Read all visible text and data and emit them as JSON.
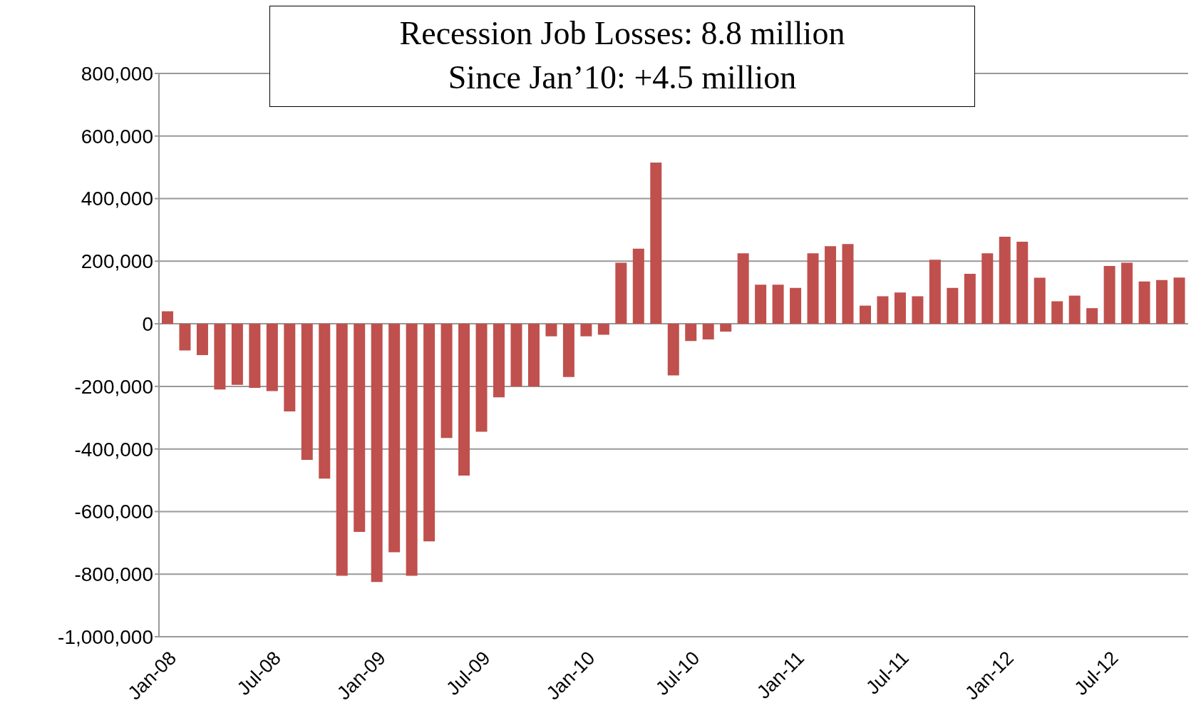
{
  "chart_data": {
    "type": "bar",
    "title": "Recession Job Losses: 8.8 million",
    "subtitle": "Since Jan’10: +4.5 million",
    "categories": [
      "Jan-08",
      null,
      null,
      null,
      null,
      null,
      "Jul-08",
      null,
      null,
      null,
      null,
      null,
      "Jan-09",
      null,
      null,
      null,
      null,
      null,
      "Jul-09",
      null,
      null,
      null,
      null,
      null,
      "Jan-10",
      null,
      null,
      null,
      null,
      null,
      "Jul-10",
      null,
      null,
      null,
      null,
      null,
      "Jan-11",
      null,
      null,
      null,
      null,
      null,
      "Jul-11",
      null,
      null,
      null,
      null,
      null,
      "Jan-12",
      null,
      null,
      null,
      null,
      null,
      "Jul-12",
      null,
      null,
      null,
      null
    ],
    "values": [
      40000,
      -85000,
      -100000,
      -210000,
      -195000,
      -205000,
      -215000,
      -280000,
      -435000,
      -495000,
      -805000,
      -665000,
      -825000,
      -730000,
      -805000,
      -695000,
      -365000,
      -485000,
      -345000,
      -235000,
      -200000,
      -200000,
      -40000,
      -170000,
      -40000,
      -35000,
      195000,
      240000,
      515000,
      -165000,
      -55000,
      -50000,
      -25000,
      225000,
      125000,
      125000,
      115000,
      225000,
      248000,
      255000,
      58000,
      88000,
      100000,
      88000,
      205000,
      115000,
      160000,
      225000,
      278000,
      262000,
      147000,
      72000,
      90000,
      50000,
      185000,
      195000,
      135000,
      140000,
      148000
    ],
    "color": "#c0504d",
    "ylim": [
      -1000000,
      800000
    ],
    "yticks": [
      {
        "value": -1000000,
        "label": "-1,000,000"
      },
      {
        "value": -800000,
        "label": "-800,000"
      },
      {
        "value": -600000,
        "label": "-600,000"
      },
      {
        "value": -400000,
        "label": "-400,000"
      },
      {
        "value": -200000,
        "label": "-200,000"
      },
      0,
      {
        "value": 200000,
        "label": "200,000"
      },
      {
        "value": 400000,
        "label": "400,000"
      },
      {
        "value": 600000,
        "label": "600,000"
      },
      {
        "value": 800000,
        "label": "800,000"
      }
    ],
    "grid": "y"
  }
}
